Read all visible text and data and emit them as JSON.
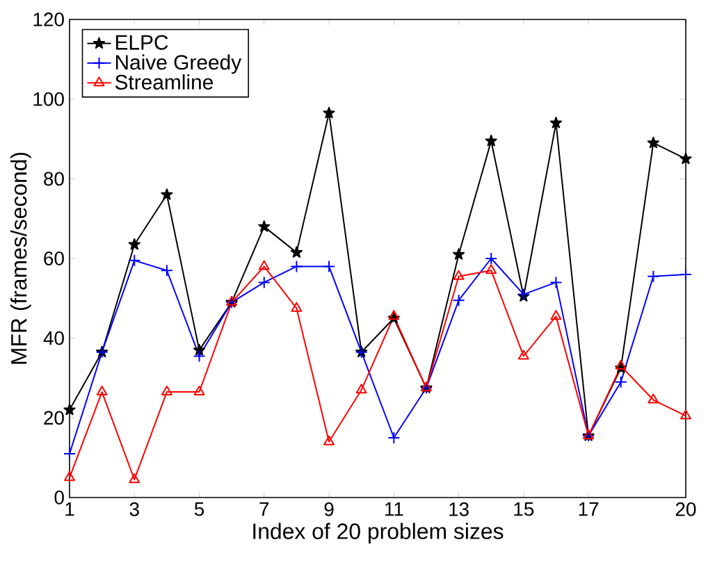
{
  "chart_data": {
    "type": "line",
    "xlabel": "Index of 20 problem sizes",
    "ylabel": "MFR (frames/second)",
    "x": [
      1,
      2,
      3,
      4,
      5,
      6,
      7,
      8,
      9,
      10,
      11,
      12,
      13,
      14,
      15,
      16,
      17,
      18,
      19,
      20
    ],
    "xlim": [
      1,
      20
    ],
    "xticks": [
      1,
      3,
      5,
      7,
      9,
      11,
      13,
      15,
      17,
      20
    ],
    "ylim": [
      0,
      120
    ],
    "yticks": [
      0,
      20,
      40,
      60,
      80,
      100,
      120
    ],
    "grid": false,
    "legend": "top left",
    "line_style": "solid",
    "series": [
      {
        "name": "ELPC",
        "color": "#000000",
        "marker": "star",
        "values": [
          22,
          36.5,
          63.5,
          76,
          37,
          49,
          68,
          61.5,
          96.5,
          36.5,
          45,
          27.5,
          61,
          89.5,
          50.5,
          94,
          15.5,
          32.5,
          89,
          85
        ]
      },
      {
        "name": "Naive Greedy",
        "color": "#0000ff",
        "marker": "cross",
        "values": [
          11,
          36.5,
          59.5,
          57,
          35.5,
          49,
          54,
          58,
          58,
          36.5,
          15,
          27.5,
          49.5,
          60,
          51,
          54,
          15.5,
          29,
          55.5,
          56
        ]
      },
      {
        "name": "Streamline",
        "color": "#ff0000",
        "marker": "triangle",
        "values": [
          5,
          26.5,
          4.5,
          26.5,
          26.5,
          49,
          58,
          47.5,
          14,
          27,
          45.5,
          27.5,
          55.5,
          57,
          35.5,
          45.5,
          15.5,
          33,
          24.5,
          20.5
        ]
      }
    ]
  }
}
